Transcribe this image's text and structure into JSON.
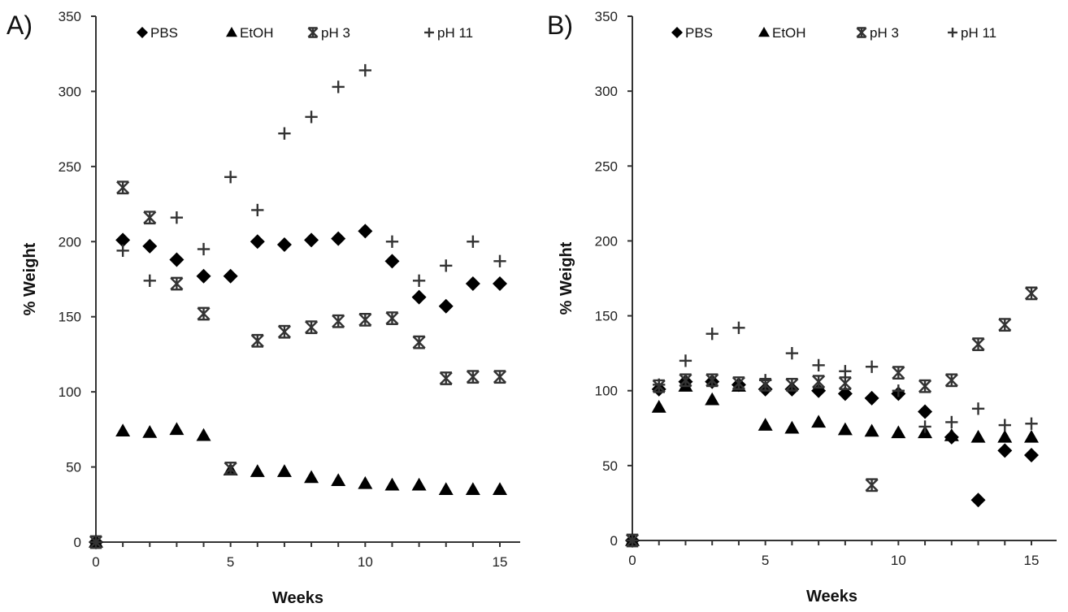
{
  "chart_data": [
    {
      "type": "scatter",
      "panel_label": "A)",
      "xlabel": "Weeks",
      "ylabel": "% Weight",
      "xlim": [
        0,
        15
      ],
      "ylim": [
        0,
        350
      ],
      "xticks": [
        0,
        5,
        10,
        15
      ],
      "yticks": [
        0,
        50,
        100,
        150,
        200,
        250,
        300,
        350
      ],
      "grid": false,
      "legend_position": "top",
      "x": [
        0,
        1,
        2,
        3,
        4,
        5,
        6,
        7,
        8,
        9,
        10,
        11,
        12,
        13,
        14,
        15
      ],
      "series": [
        {
          "name": "PBS",
          "marker": "diamond",
          "values": [
            0,
            201,
            197,
            188,
            177,
            177,
            200,
            198,
            201,
            202,
            207,
            187,
            163,
            157,
            172,
            172
          ]
        },
        {
          "name": "EtOH",
          "marker": "triangle",
          "values": [
            0,
            74,
            73,
            75,
            71,
            48,
            47,
            47,
            43,
            41,
            39,
            38,
            38,
            35,
            35,
            35
          ]
        },
        {
          "name": "pH 3",
          "marker": "asterisk",
          "values": [
            0,
            236,
            216,
            172,
            152,
            49,
            134,
            140,
            143,
            147,
            148,
            149,
            133,
            109,
            110,
            110
          ]
        },
        {
          "name": "pH 11",
          "marker": "plus",
          "values": [
            0,
            194,
            174,
            216,
            195,
            243,
            221,
            272,
            283,
            303,
            314,
            200,
            174,
            184,
            200,
            187
          ]
        }
      ]
    },
    {
      "type": "scatter",
      "panel_label": "B)",
      "xlabel": "Weeks",
      "ylabel": "% Weight",
      "xlim": [
        0,
        15
      ],
      "ylim": [
        0,
        350
      ],
      "xticks": [
        0,
        5,
        10,
        15
      ],
      "yticks": [
        0,
        50,
        100,
        150,
        200,
        250,
        300,
        350
      ],
      "grid": false,
      "legend_position": "top",
      "x": [
        0,
        1,
        2,
        3,
        4,
        5,
        6,
        7,
        8,
        9,
        10,
        11,
        12,
        13,
        14,
        15
      ],
      "series": [
        {
          "name": "PBS",
          "marker": "diamond",
          "values": [
            0,
            101,
            106,
            106,
            104,
            101,
            101,
            100,
            98,
            95,
            98,
            86,
            69,
            27,
            60,
            57
          ]
        },
        {
          "name": "EtOH",
          "marker": "triangle",
          "values": [
            0,
            89,
            103,
            94,
            103,
            77,
            75,
            79,
            74,
            73,
            72,
            72,
            70,
            69,
            69,
            69
          ]
        },
        {
          "name": "pH 3",
          "marker": "asterisk",
          "values": [
            0,
            103,
            107,
            107,
            105,
            104,
            104,
            106,
            105,
            37,
            112,
            103,
            107,
            131,
            144,
            165
          ]
        },
        {
          "name": "pH 11",
          "marker": "plus",
          "values": [
            0,
            104,
            120,
            138,
            142,
            107,
            125,
            117,
            113,
            116,
            100,
            76,
            79,
            88,
            77,
            78
          ]
        }
      ]
    }
  ],
  "colors": {
    "marker": "#000000",
    "marker_light": "#333333",
    "axis": "#333333"
  }
}
